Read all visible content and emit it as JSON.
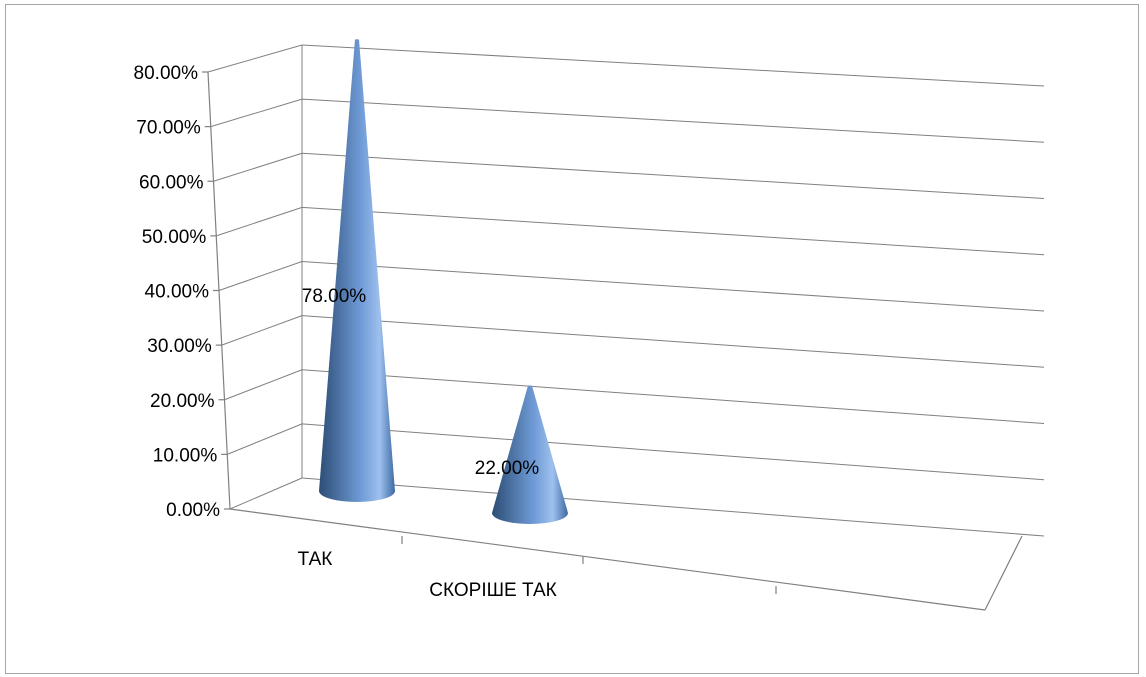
{
  "chart_data": {
    "type": "bar",
    "shape": "cone-3d",
    "categories": [
      "ТАК",
      "СКОРІШЕ ТАК"
    ],
    "values": [
      78.0,
      22.0
    ],
    "data_labels": [
      "78.00%",
      "22.00%"
    ],
    "ylim": [
      0,
      80
    ],
    "yticks": [
      0,
      10,
      20,
      30,
      40,
      50,
      60,
      70,
      80
    ],
    "ytick_labels": [
      "0.00%",
      "10.00%",
      "20.00%",
      "30.00%",
      "40.00%",
      "50.00%",
      "60.00%",
      "70.00%",
      "80.00%"
    ],
    "grid": true,
    "legend": "none",
    "colors": {
      "cone_light": "#9ec0ee",
      "cone_mid": "#4f81bd",
      "cone_dark": "#2c4d75",
      "grid": "#808080"
    }
  }
}
